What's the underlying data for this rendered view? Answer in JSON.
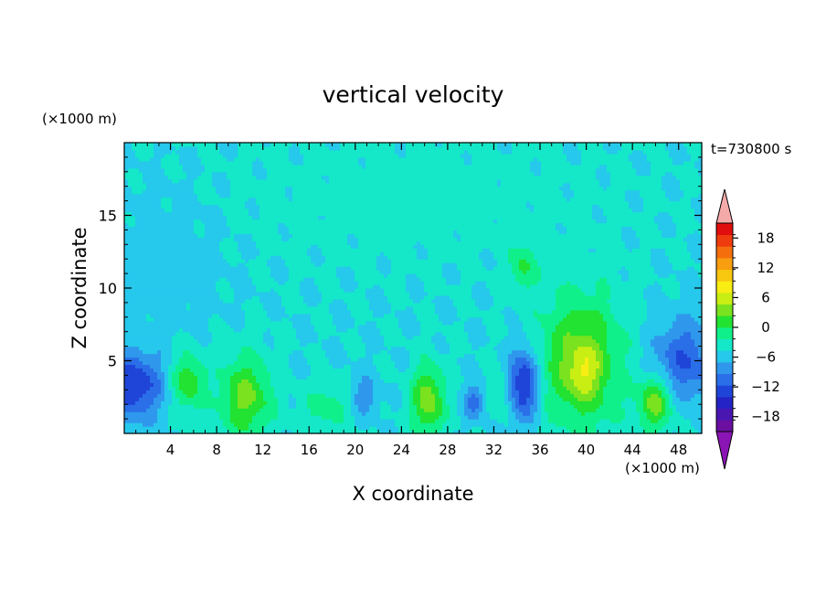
{
  "chart_data": {
    "type": "heatmap",
    "title": "vertical velocity",
    "xlabel": "X coordinate",
    "ylabel": "Z coordinate",
    "x_unit_label": "(×1000 m)",
    "y_unit_label": "(×1000 m)",
    "time_label": "t=730800 s",
    "xlim": [
      0,
      50
    ],
    "ylim": [
      0,
      20
    ],
    "x_ticks": [
      4,
      8,
      12,
      16,
      20,
      24,
      28,
      32,
      36,
      40,
      44,
      48
    ],
    "y_ticks": [
      5,
      10,
      15
    ],
    "colorbar": {
      "min": -21,
      "max": 21,
      "step": 3,
      "tick_labels": [
        -18,
        -12,
        -6,
        0,
        6,
        12,
        18
      ],
      "colors": [
        "#6a0fa0",
        "#4a16b2",
        "#2424c4",
        "#1f45d8",
        "#2a6ee8",
        "#2f98ec",
        "#26c8ec",
        "#14e8c8",
        "#10f08a",
        "#22e232",
        "#7ae21e",
        "#c8ee14",
        "#f8ee14",
        "#f8c810",
        "#f89e10",
        "#f46e0e",
        "#ee3c0e",
        "#e00e0e"
      ],
      "over_color": "#f5aaaa",
      "under_color": "#8a14b4"
    },
    "field_blobs": [
      {
        "x": 0.8,
        "z": 3.3,
        "sx": 1.8,
        "sz": 1.6,
        "v": -12
      },
      {
        "x": 5.5,
        "z": 3.6,
        "sx": 1.0,
        "sz": 1.4,
        "v": 9
      },
      {
        "x": 10.5,
        "z": 2.5,
        "sx": 1.6,
        "sz": 2.0,
        "v": 10
      },
      {
        "x": 17.5,
        "z": 1.8,
        "sx": 1.4,
        "sz": 1.0,
        "v": 5
      },
      {
        "x": 20.8,
        "z": 2.6,
        "sx": 0.8,
        "sz": 0.9,
        "v": -6
      },
      {
        "x": 26.3,
        "z": 2.3,
        "sx": 1.0,
        "sz": 1.7,
        "v": 11
      },
      {
        "x": 30.3,
        "z": 2.2,
        "sx": 0.6,
        "sz": 0.8,
        "v": -8
      },
      {
        "x": 32.6,
        "z": 2.6,
        "sx": 0.6,
        "sz": 1.0,
        "v": 4
      },
      {
        "x": 34.6,
        "z": 3.4,
        "sx": 0.9,
        "sz": 1.7,
        "v": -14
      },
      {
        "x": 39.5,
        "z": 5.0,
        "sx": 2.6,
        "sz": 3.4,
        "v": 10
      },
      {
        "x": 39.8,
        "z": 4.3,
        "sx": 1.0,
        "sz": 1.3,
        "v": 6
      },
      {
        "x": 46.0,
        "z": 2.2,
        "sx": 1.1,
        "sz": 1.3,
        "v": 11
      },
      {
        "x": 48.5,
        "z": 5.0,
        "sx": 2.0,
        "sz": 2.0,
        "v": -9
      },
      {
        "x": 3.5,
        "z": 12.0,
        "sx": 3.5,
        "sz": 3.5,
        "v": -2
      },
      {
        "x": 25.0,
        "z": 16.0,
        "sx": 12.0,
        "sz": 3.0,
        "v": 1.5
      },
      {
        "x": 34.5,
        "z": 11.5,
        "sx": 0.8,
        "sz": 1.2,
        "v": 6
      }
    ]
  }
}
